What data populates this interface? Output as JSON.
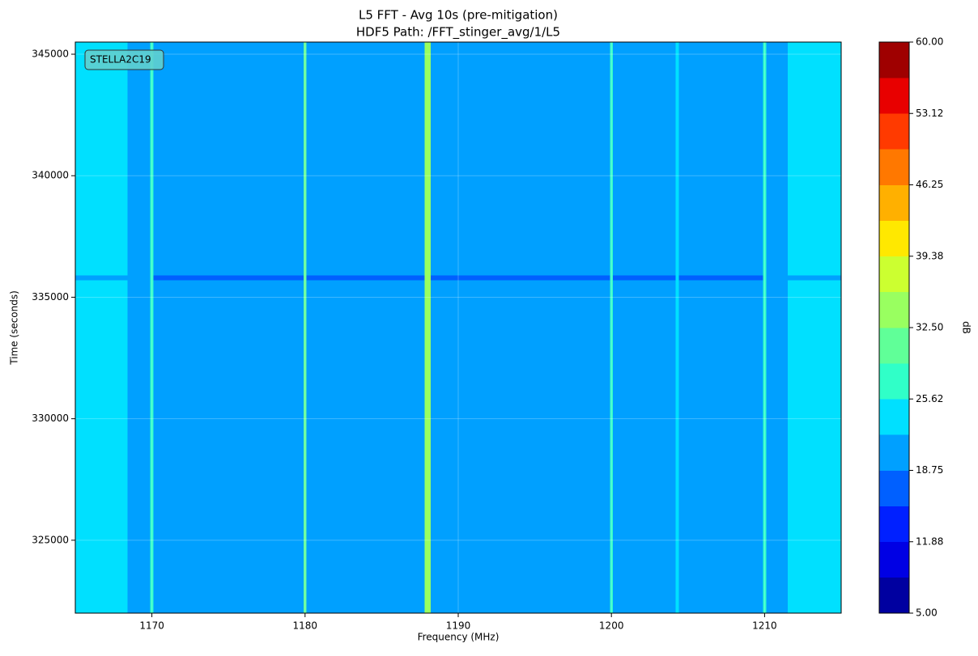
{
  "chart_data": {
    "type": "heatmap",
    "title": "L5 FFT - Avg 10s (pre-mitigation)",
    "subtitle": "HDF5 Path: /FFT_stinger_avg/1/L5",
    "x_label": "Frequency (MHz)",
    "y_label": "Time (seconds)",
    "annotation": "STELLA2C19",
    "xlim": [
      1165,
      1215
    ],
    "xticks": [
      1170,
      1180,
      1190,
      1200,
      1210
    ],
    "ylim": [
      322000,
      345500
    ],
    "yticks": [
      325000,
      330000,
      335000,
      340000,
      345000
    ],
    "grid": true,
    "xbins": [
      1165,
      1168.4,
      1169.9,
      1170.1,
      1179.9,
      1180.1,
      1187.8,
      1188.2,
      1199.9,
      1200.1,
      1204.2,
      1204.4,
      1209.9,
      1210.1,
      1211.5,
      1215
    ],
    "ybins": [
      322000,
      335700,
      335900,
      345500
    ],
    "z": [
      [
        24,
        21,
        27,
        20,
        31,
        20,
        34,
        20,
        28,
        20,
        24,
        20,
        27,
        21,
        24
      ],
      [
        21,
        21,
        27,
        17,
        31,
        17,
        34,
        17,
        28,
        17,
        24,
        17,
        27,
        21,
        21
      ],
      [
        24,
        21,
        27,
        20,
        31,
        20,
        34,
        20,
        28,
        20,
        24,
        20,
        27,
        21,
        24
      ]
    ],
    "colorbar": {
      "label": "dB",
      "zlim": [
        5,
        60
      ],
      "ticks": [
        {
          "value": 5,
          "label": "5.00"
        },
        {
          "value": 11.875,
          "label": "11.88"
        },
        {
          "value": 18.75,
          "label": "18.75"
        },
        {
          "value": 25.625,
          "label": "25.62"
        },
        {
          "value": 32.5,
          "label": "32.50"
        },
        {
          "value": 39.375,
          "label": "39.38"
        },
        {
          "value": 46.25,
          "label": "46.25"
        },
        {
          "value": 53.125,
          "label": "53.12"
        },
        {
          "value": 60,
          "label": "60.00"
        }
      ],
      "colors": [
        "#0000a0",
        "#0000e4",
        "#0020ff",
        "#0060ff",
        "#00a0ff",
        "#00e0ff",
        "#30ffc8",
        "#60ff98",
        "#99ff60",
        "#ccff30",
        "#ffe800",
        "#ffb000",
        "#ff7800",
        "#ff3a00",
        "#e80000",
        "#9f0000"
      ]
    }
  }
}
